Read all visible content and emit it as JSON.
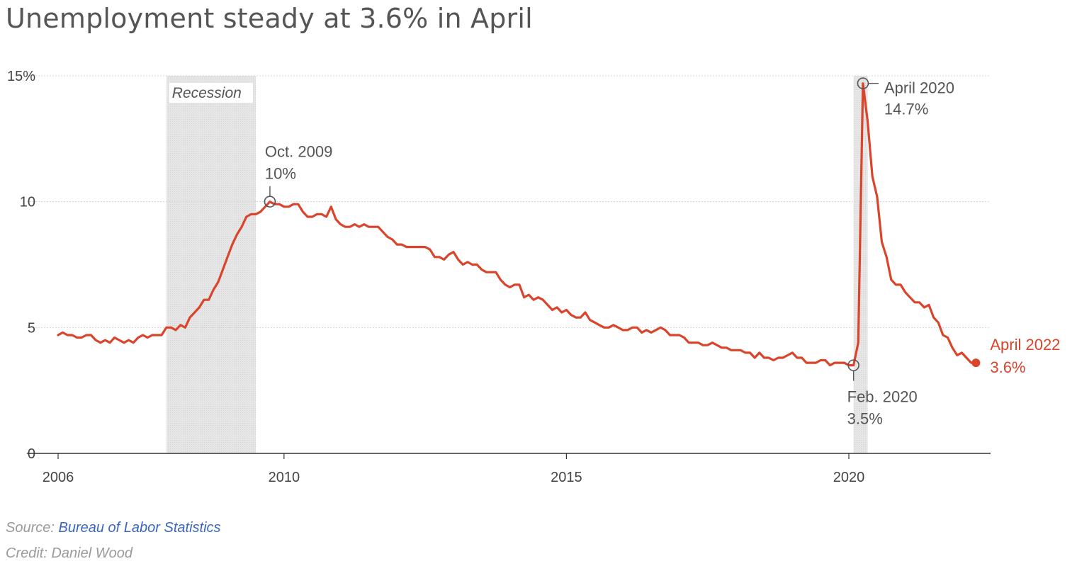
{
  "title": "Unemployment steady at 3.6% in April",
  "footer": {
    "source_label": "Source:",
    "source_link": "Bureau of Labor Statistics",
    "credit": "Credit: Daniel Wood"
  },
  "chart_data": {
    "type": "line",
    "title": "Unemployment steady at 3.6% in April",
    "xlabel": "",
    "ylabel": "",
    "x_range": [
      2006.0,
      2022.5
    ],
    "ylim": [
      0,
      15
    ],
    "y_ticks": [
      0,
      5,
      10,
      15
    ],
    "y_tick_labels": [
      "0",
      "5",
      "10",
      "15%"
    ],
    "x_ticks": [
      2006,
      2010,
      2015,
      2020
    ],
    "x_tick_labels": [
      "2006",
      "2010",
      "2015",
      "2020"
    ],
    "grid": true,
    "line_color": "#d9442b",
    "shading": [
      {
        "label": "Recession",
        "start": 2007.9167,
        "end": 2009.5
      },
      {
        "label": "",
        "start": 2020.0833,
        "end": 2020.3333
      }
    ],
    "series": [
      {
        "name": "",
        "points": [
          [
            2006.0,
            4.7
          ],
          [
            2006.083,
            4.8
          ],
          [
            2006.167,
            4.7
          ],
          [
            2006.25,
            4.7
          ],
          [
            2006.333,
            4.6
          ],
          [
            2006.417,
            4.6
          ],
          [
            2006.5,
            4.7
          ],
          [
            2006.583,
            4.7
          ],
          [
            2006.667,
            4.5
          ],
          [
            2006.75,
            4.4
          ],
          [
            2006.833,
            4.5
          ],
          [
            2006.917,
            4.4
          ],
          [
            2007.0,
            4.6
          ],
          [
            2007.083,
            4.5
          ],
          [
            2007.167,
            4.4
          ],
          [
            2007.25,
            4.5
          ],
          [
            2007.333,
            4.4
          ],
          [
            2007.417,
            4.6
          ],
          [
            2007.5,
            4.7
          ],
          [
            2007.583,
            4.6
          ],
          [
            2007.667,
            4.7
          ],
          [
            2007.75,
            4.7
          ],
          [
            2007.833,
            4.7
          ],
          [
            2007.917,
            5.0
          ],
          [
            2008.0,
            5.0
          ],
          [
            2008.083,
            4.9
          ],
          [
            2008.167,
            5.1
          ],
          [
            2008.25,
            5.0
          ],
          [
            2008.333,
            5.4
          ],
          [
            2008.417,
            5.6
          ],
          [
            2008.5,
            5.8
          ],
          [
            2008.583,
            6.1
          ],
          [
            2008.667,
            6.1
          ],
          [
            2008.75,
            6.5
          ],
          [
            2008.833,
            6.8
          ],
          [
            2008.917,
            7.3
          ],
          [
            2009.0,
            7.8
          ],
          [
            2009.083,
            8.3
          ],
          [
            2009.167,
            8.7
          ],
          [
            2009.25,
            9.0
          ],
          [
            2009.333,
            9.4
          ],
          [
            2009.417,
            9.5
          ],
          [
            2009.5,
            9.5
          ],
          [
            2009.583,
            9.6
          ],
          [
            2009.667,
            9.8
          ],
          [
            2009.75,
            10.0
          ],
          [
            2009.833,
            9.9
          ],
          [
            2009.917,
            9.9
          ],
          [
            2010.0,
            9.8
          ],
          [
            2010.083,
            9.8
          ],
          [
            2010.167,
            9.9
          ],
          [
            2010.25,
            9.9
          ],
          [
            2010.333,
            9.6
          ],
          [
            2010.417,
            9.4
          ],
          [
            2010.5,
            9.4
          ],
          [
            2010.583,
            9.5
          ],
          [
            2010.667,
            9.5
          ],
          [
            2010.75,
            9.4
          ],
          [
            2010.833,
            9.8
          ],
          [
            2010.917,
            9.3
          ],
          [
            2011.0,
            9.1
          ],
          [
            2011.083,
            9.0
          ],
          [
            2011.167,
            9.0
          ],
          [
            2011.25,
            9.1
          ],
          [
            2011.333,
            9.0
          ],
          [
            2011.417,
            9.1
          ],
          [
            2011.5,
            9.0
          ],
          [
            2011.583,
            9.0
          ],
          [
            2011.667,
            9.0
          ],
          [
            2011.75,
            8.8
          ],
          [
            2011.833,
            8.6
          ],
          [
            2011.917,
            8.5
          ],
          [
            2012.0,
            8.3
          ],
          [
            2012.083,
            8.3
          ],
          [
            2012.167,
            8.2
          ],
          [
            2012.25,
            8.2
          ],
          [
            2012.333,
            8.2
          ],
          [
            2012.417,
            8.2
          ],
          [
            2012.5,
            8.2
          ],
          [
            2012.583,
            8.1
          ],
          [
            2012.667,
            7.8
          ],
          [
            2012.75,
            7.8
          ],
          [
            2012.833,
            7.7
          ],
          [
            2012.917,
            7.9
          ],
          [
            2013.0,
            8.0
          ],
          [
            2013.083,
            7.7
          ],
          [
            2013.167,
            7.5
          ],
          [
            2013.25,
            7.6
          ],
          [
            2013.333,
            7.5
          ],
          [
            2013.417,
            7.5
          ],
          [
            2013.5,
            7.3
          ],
          [
            2013.583,
            7.2
          ],
          [
            2013.667,
            7.2
          ],
          [
            2013.75,
            7.2
          ],
          [
            2013.833,
            6.9
          ],
          [
            2013.917,
            6.7
          ],
          [
            2014.0,
            6.6
          ],
          [
            2014.083,
            6.7
          ],
          [
            2014.167,
            6.7
          ],
          [
            2014.25,
            6.2
          ],
          [
            2014.333,
            6.3
          ],
          [
            2014.417,
            6.1
          ],
          [
            2014.5,
            6.2
          ],
          [
            2014.583,
            6.1
          ],
          [
            2014.667,
            5.9
          ],
          [
            2014.75,
            5.7
          ],
          [
            2014.833,
            5.8
          ],
          [
            2014.917,
            5.6
          ],
          [
            2015.0,
            5.7
          ],
          [
            2015.083,
            5.5
          ],
          [
            2015.167,
            5.4
          ],
          [
            2015.25,
            5.4
          ],
          [
            2015.333,
            5.6
          ],
          [
            2015.417,
            5.3
          ],
          [
            2015.5,
            5.2
          ],
          [
            2015.583,
            5.1
          ],
          [
            2015.667,
            5.0
          ],
          [
            2015.75,
            5.0
          ],
          [
            2015.833,
            5.1
          ],
          [
            2015.917,
            5.0
          ],
          [
            2016.0,
            4.9
          ],
          [
            2016.083,
            4.9
          ],
          [
            2016.167,
            5.0
          ],
          [
            2016.25,
            5.0
          ],
          [
            2016.333,
            4.8
          ],
          [
            2016.417,
            4.9
          ],
          [
            2016.5,
            4.8
          ],
          [
            2016.583,
            4.9
          ],
          [
            2016.667,
            5.0
          ],
          [
            2016.75,
            4.9
          ],
          [
            2016.833,
            4.7
          ],
          [
            2016.917,
            4.7
          ],
          [
            2017.0,
            4.7
          ],
          [
            2017.083,
            4.6
          ],
          [
            2017.167,
            4.4
          ],
          [
            2017.25,
            4.4
          ],
          [
            2017.333,
            4.4
          ],
          [
            2017.417,
            4.3
          ],
          [
            2017.5,
            4.3
          ],
          [
            2017.583,
            4.4
          ],
          [
            2017.667,
            4.3
          ],
          [
            2017.75,
            4.2
          ],
          [
            2017.833,
            4.2
          ],
          [
            2017.917,
            4.1
          ],
          [
            2018.0,
            4.1
          ],
          [
            2018.083,
            4.1
          ],
          [
            2018.167,
            4.0
          ],
          [
            2018.25,
            4.0
          ],
          [
            2018.333,
            3.8
          ],
          [
            2018.417,
            4.0
          ],
          [
            2018.5,
            3.8
          ],
          [
            2018.583,
            3.8
          ],
          [
            2018.667,
            3.7
          ],
          [
            2018.75,
            3.8
          ],
          [
            2018.833,
            3.8
          ],
          [
            2018.917,
            3.9
          ],
          [
            2019.0,
            4.0
          ],
          [
            2019.083,
            3.8
          ],
          [
            2019.167,
            3.8
          ],
          [
            2019.25,
            3.6
          ],
          [
            2019.333,
            3.6
          ],
          [
            2019.417,
            3.6
          ],
          [
            2019.5,
            3.7
          ],
          [
            2019.583,
            3.7
          ],
          [
            2019.667,
            3.5
          ],
          [
            2019.75,
            3.6
          ],
          [
            2019.833,
            3.6
          ],
          [
            2019.917,
            3.6
          ],
          [
            2020.0,
            3.5
          ],
          [
            2020.083,
            3.5
          ],
          [
            2020.167,
            4.4
          ],
          [
            2020.25,
            14.7
          ],
          [
            2020.333,
            13.2
          ],
          [
            2020.417,
            11.0
          ],
          [
            2020.5,
            10.2
          ],
          [
            2020.583,
            8.4
          ],
          [
            2020.667,
            7.8
          ],
          [
            2020.75,
            6.9
          ],
          [
            2020.833,
            6.7
          ],
          [
            2020.917,
            6.7
          ],
          [
            2021.0,
            6.4
          ],
          [
            2021.083,
            6.2
          ],
          [
            2021.167,
            6.0
          ],
          [
            2021.25,
            6.0
          ],
          [
            2021.333,
            5.8
          ],
          [
            2021.417,
            5.9
          ],
          [
            2021.5,
            5.4
          ],
          [
            2021.583,
            5.2
          ],
          [
            2021.667,
            4.7
          ],
          [
            2021.75,
            4.6
          ],
          [
            2021.833,
            4.2
          ],
          [
            2021.917,
            3.9
          ],
          [
            2022.0,
            4.0
          ],
          [
            2022.083,
            3.8
          ],
          [
            2022.167,
            3.6
          ],
          [
            2022.25,
            3.6
          ]
        ]
      }
    ],
    "annotations": [
      {
        "x": 2009.75,
        "y": 10.0,
        "line1": "Oct. 2009",
        "line2": "10%",
        "position": "above",
        "marker": "open-circle",
        "color": "#555555"
      },
      {
        "x": 2020.0833,
        "y": 3.5,
        "line1": "Feb. 2020",
        "line2": "3.5%",
        "position": "below",
        "marker": "open-circle",
        "color": "#555555"
      },
      {
        "x": 2020.25,
        "y": 14.7,
        "line1": "April 2020",
        "line2": "14.7%",
        "position": "right",
        "marker": "open-circle",
        "color": "#555555"
      },
      {
        "x": 2022.25,
        "y": 3.6,
        "line1": "April 2022",
        "line2": "3.6%",
        "position": "right",
        "marker": "filled-circle",
        "color": "#d9442b"
      }
    ]
  }
}
